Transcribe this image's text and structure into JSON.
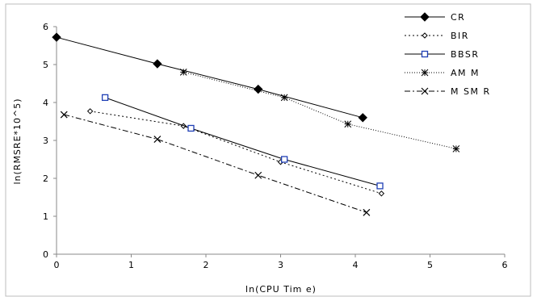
{
  "chart_data": {
    "type": "line",
    "title": "",
    "xlabel": "ln(CPU Tim e)",
    "ylabel": "ln(RMSRE*10^5)",
    "xlim": [
      0,
      6
    ],
    "ylim": [
      0,
      6
    ],
    "xticks": [
      "0",
      "1",
      "2",
      "3",
      "4",
      "5",
      "6"
    ],
    "yticks": [
      "0",
      "1",
      "2",
      "3",
      "4",
      "5",
      "6"
    ],
    "grid": false,
    "legend_position": "top-right",
    "series": [
      {
        "name": "CR",
        "color": "#000000",
        "line_style": "solid",
        "marker": "filled-diamond",
        "x": [
          0.0,
          1.35,
          2.7,
          4.1
        ],
        "y": [
          5.72,
          5.02,
          4.35,
          3.6
        ]
      },
      {
        "name": "BIR",
        "color": "#000000",
        "line_style": "dotted",
        "marker": "open-diamond",
        "x": [
          0.45,
          1.7,
          3.0,
          4.35
        ],
        "y": [
          3.77,
          3.38,
          2.43,
          1.6
        ]
      },
      {
        "name": "BBSR",
        "color": "#000000",
        "line_style": "solid",
        "marker": "open-square-blue",
        "x": [
          0.65,
          1.8,
          3.05,
          4.33
        ],
        "y": [
          4.13,
          3.32,
          2.5,
          1.8
        ]
      },
      {
        "name": "AM M",
        "color": "#000000",
        "line_style": "fine-dotted",
        "marker": "asterisk",
        "x": [
          1.7,
          3.05,
          3.9,
          5.35
        ],
        "y": [
          4.8,
          4.13,
          3.43,
          2.78
        ]
      },
      {
        "name": "M SM R",
        "color": "#000000",
        "line_style": "dash-dot",
        "marker": "x-cross",
        "x": [
          0.1,
          1.35,
          2.7,
          4.15
        ],
        "y": [
          3.68,
          3.03,
          2.08,
          1.1
        ]
      }
    ]
  }
}
